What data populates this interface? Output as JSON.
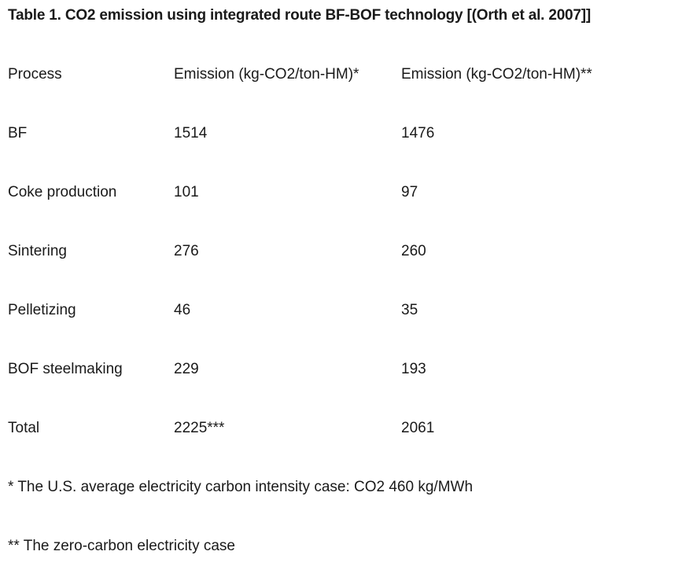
{
  "title": "Table 1. CO2 emission using integrated route BF-BOF technology [(Orth et al. 2007]]",
  "table": {
    "headers": [
      "Process",
      "Emission (kg-CO2/ton-HM)*",
      "Emission (kg-CO2/ton-HM)**"
    ],
    "rows": [
      [
        "BF",
        "1514",
        "1476"
      ],
      [
        "Coke production",
        "101",
        "97"
      ],
      [
        "Sintering",
        "276",
        "260"
      ],
      [
        "Pelletizing",
        "46",
        "35"
      ],
      [
        "BOF steelmaking",
        "229",
        "193"
      ],
      [
        "Total",
        "2225***",
        "2061"
      ]
    ]
  },
  "notes": [
    "* The U.S. average electricity carbon intensity case: CO2 460 kg/MWh",
    "** The zero-carbon electricity case"
  ]
}
